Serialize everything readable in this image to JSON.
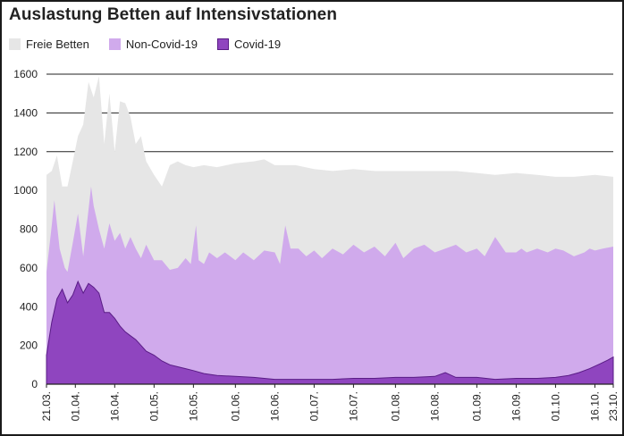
{
  "chart_data": {
    "type": "area",
    "title": "Auslastung Betten auf Intensivstationen",
    "xlabel": "",
    "ylabel": "",
    "ylim": [
      0,
      1600
    ],
    "yticks": [
      0,
      200,
      400,
      600,
      800,
      1000,
      1200,
      1400,
      1600
    ],
    "grid": "horizontal",
    "legend_position": "top-left",
    "x_start": "21.03.",
    "x_end": "23.10.",
    "xtick_labels": [
      "21.03.",
      "01.04.",
      "16.04.",
      "01.05.",
      "16.05.",
      "01.06.",
      "16.06.",
      "01.07.",
      "16.07.",
      "01.08.",
      "16.08.",
      "01.09.",
      "16.09.",
      "01.10.",
      "16.10.",
      "23.10."
    ],
    "colors": {
      "Freie Betten": "#e6e6e6",
      "Non-Covid-19": "#d0aaec",
      "Covid-19": "#8f45bf",
      "Covid-19-edge": "#5a1c86"
    },
    "series": [
      {
        "name": "Covid-19",
        "points": [
          [
            "21.03.",
            150
          ],
          [
            "23.03.",
            320
          ],
          [
            "25.03.",
            440
          ],
          [
            "27.03.",
            490
          ],
          [
            "29.03.",
            420
          ],
          [
            "31.03.",
            460
          ],
          [
            "02.04.",
            530
          ],
          [
            "04.04.",
            470
          ],
          [
            "06.04.",
            520
          ],
          [
            "08.04.",
            500
          ],
          [
            "10.04.",
            470
          ],
          [
            "12.04.",
            370
          ],
          [
            "14.04.",
            370
          ],
          [
            "16.04.",
            340
          ],
          [
            "18.04.",
            300
          ],
          [
            "20.04.",
            270
          ],
          [
            "22.04.",
            250
          ],
          [
            "24.04.",
            230
          ],
          [
            "26.04.",
            200
          ],
          [
            "28.04.",
            170
          ],
          [
            "01.05.",
            150
          ],
          [
            "04.05.",
            120
          ],
          [
            "07.05.",
            100
          ],
          [
            "10.05.",
            90
          ],
          [
            "13.05.",
            80
          ],
          [
            "16.05.",
            70
          ],
          [
            "20.05.",
            55
          ],
          [
            "25.05.",
            45
          ],
          [
            "01.06.",
            40
          ],
          [
            "08.06.",
            35
          ],
          [
            "16.06.",
            25
          ],
          [
            "24.06.",
            25
          ],
          [
            "01.07.",
            25
          ],
          [
            "08.07.",
            25
          ],
          [
            "16.07.",
            30
          ],
          [
            "24.07.",
            30
          ],
          [
            "01.08.",
            35
          ],
          [
            "08.08.",
            35
          ],
          [
            "16.08.",
            40
          ],
          [
            "20.08.",
            60
          ],
          [
            "24.08.",
            35
          ],
          [
            "01.09.",
            35
          ],
          [
            "08.09.",
            25
          ],
          [
            "16.09.",
            30
          ],
          [
            "24.09.",
            30
          ],
          [
            "01.10.",
            35
          ],
          [
            "06.10.",
            45
          ],
          [
            "10.10.",
            60
          ],
          [
            "14.10.",
            80
          ],
          [
            "18.10.",
            105
          ],
          [
            "21.10.",
            125
          ],
          [
            "23.10.",
            140
          ]
        ]
      },
      {
        "name": "Non-Covid-19",
        "points": [
          [
            "21.03.",
            580
          ],
          [
            "23.03.",
            820
          ],
          [
            "24.03.",
            950
          ],
          [
            "26.03.",
            700
          ],
          [
            "28.03.",
            600
          ],
          [
            "29.03.",
            580
          ],
          [
            "31.03.",
            730
          ],
          [
            "02.04.",
            880
          ],
          [
            "04.04.",
            660
          ],
          [
            "06.04.",
            900
          ],
          [
            "07.04.",
            1020
          ],
          [
            "08.04.",
            920
          ],
          [
            "10.04.",
            800
          ],
          [
            "12.04.",
            700
          ],
          [
            "14.04.",
            830
          ],
          [
            "16.04.",
            740
          ],
          [
            "18.04.",
            780
          ],
          [
            "20.04.",
            700
          ],
          [
            "22.04.",
            760
          ],
          [
            "24.04.",
            700
          ],
          [
            "26.04.",
            650
          ],
          [
            "28.04.",
            720
          ],
          [
            "01.05.",
            640
          ],
          [
            "04.05.",
            640
          ],
          [
            "07.05.",
            590
          ],
          [
            "10.05.",
            600
          ],
          [
            "13.05.",
            650
          ],
          [
            "15.05.",
            620
          ],
          [
            "17.05.",
            820
          ],
          [
            "18.05.",
            640
          ],
          [
            "20.05.",
            620
          ],
          [
            "22.05.",
            680
          ],
          [
            "25.05.",
            650
          ],
          [
            "28.05.",
            680
          ],
          [
            "01.06.",
            640
          ],
          [
            "04.06.",
            680
          ],
          [
            "08.06.",
            640
          ],
          [
            "12.06.",
            690
          ],
          [
            "16.06.",
            680
          ],
          [
            "18.06.",
            620
          ],
          [
            "20.06.",
            820
          ],
          [
            "22.06.",
            700
          ],
          [
            "25.06.",
            700
          ],
          [
            "28.06.",
            660
          ],
          [
            "01.07.",
            690
          ],
          [
            "04.07.",
            650
          ],
          [
            "08.07.",
            700
          ],
          [
            "12.07.",
            670
          ],
          [
            "16.07.",
            720
          ],
          [
            "20.07.",
            680
          ],
          [
            "24.07.",
            710
          ],
          [
            "28.07.",
            660
          ],
          [
            "01.08.",
            730
          ],
          [
            "04.08.",
            650
          ],
          [
            "08.08.",
            700
          ],
          [
            "12.08.",
            720
          ],
          [
            "16.08.",
            680
          ],
          [
            "20.08.",
            700
          ],
          [
            "24.08.",
            720
          ],
          [
            "28.08.",
            680
          ],
          [
            "01.09.",
            700
          ],
          [
            "04.09.",
            660
          ],
          [
            "08.09.",
            760
          ],
          [
            "12.09.",
            680
          ],
          [
            "16.09.",
            680
          ],
          [
            "18.09.",
            700
          ],
          [
            "20.09.",
            680
          ],
          [
            "24.09.",
            700
          ],
          [
            "28.09.",
            680
          ],
          [
            "01.10.",
            700
          ],
          [
            "04.10.",
            690
          ],
          [
            "08.10.",
            660
          ],
          [
            "12.10.",
            680
          ],
          [
            "14.10.",
            700
          ],
          [
            "16.10.",
            690
          ],
          [
            "19.10.",
            700
          ],
          [
            "23.10.",
            710
          ]
        ]
      },
      {
        "name": "Freie Betten",
        "points": [
          [
            "21.03.",
            1080
          ],
          [
            "23.03.",
            1100
          ],
          [
            "25.03.",
            1180
          ],
          [
            "27.03.",
            1020
          ],
          [
            "29.03.",
            1020
          ],
          [
            "31.03.",
            1150
          ],
          [
            "02.04.",
            1280
          ],
          [
            "04.04.",
            1340
          ],
          [
            "06.04.",
            1560
          ],
          [
            "08.04.",
            1480
          ],
          [
            "10.04.",
            1590
          ],
          [
            "12.04.",
            1240
          ],
          [
            "14.04.",
            1500
          ],
          [
            "16.04.",
            1200
          ],
          [
            "18.04.",
            1460
          ],
          [
            "20.04.",
            1450
          ],
          [
            "22.04.",
            1380
          ],
          [
            "24.04.",
            1240
          ],
          [
            "26.04.",
            1280
          ],
          [
            "28.04.",
            1150
          ],
          [
            "01.05.",
            1080
          ],
          [
            "04.05.",
            1020
          ],
          [
            "07.05.",
            1130
          ],
          [
            "10.05.",
            1150
          ],
          [
            "13.05.",
            1130
          ],
          [
            "16.05.",
            1120
          ],
          [
            "20.05.",
            1130
          ],
          [
            "25.05.",
            1120
          ],
          [
            "01.06.",
            1140
          ],
          [
            "08.06.",
            1150
          ],
          [
            "12.06.",
            1160
          ],
          [
            "16.06.",
            1130
          ],
          [
            "20.06.",
            1130
          ],
          [
            "24.06.",
            1130
          ],
          [
            "01.07.",
            1110
          ],
          [
            "08.07.",
            1100
          ],
          [
            "16.07.",
            1110
          ],
          [
            "24.07.",
            1100
          ],
          [
            "01.08.",
            1100
          ],
          [
            "08.08.",
            1100
          ],
          [
            "16.08.",
            1100
          ],
          [
            "24.08.",
            1100
          ],
          [
            "01.09.",
            1090
          ],
          [
            "08.09.",
            1080
          ],
          [
            "16.09.",
            1090
          ],
          [
            "24.09.",
            1080
          ],
          [
            "01.10.",
            1070
          ],
          [
            "08.10.",
            1070
          ],
          [
            "16.10.",
            1080
          ],
          [
            "23.10.",
            1070
          ]
        ]
      }
    ]
  }
}
